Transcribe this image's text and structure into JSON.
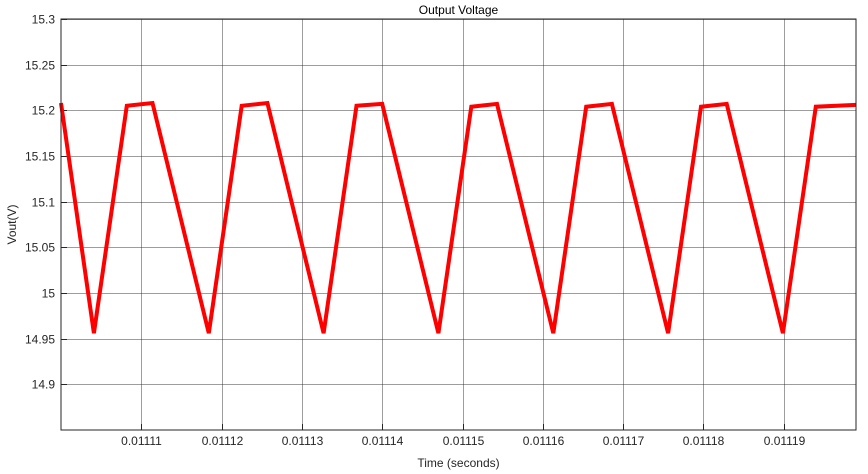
{
  "chart_data": {
    "type": "line",
    "title": "Output Voltage",
    "xlabel": "Time (seconds)",
    "ylabel": "Vout(V)",
    "xlim": [
      0.0111,
      0.011199
    ],
    "ylim": [
      14.85,
      15.3
    ],
    "grid": true,
    "colors": {
      "series": "#ff0000",
      "grid": "#262626",
      "axes": "#262626",
      "background": "#ffffff"
    },
    "x_ticks": [
      0.01111,
      0.01112,
      0.01113,
      0.01114,
      0.01115,
      0.01116,
      0.01117,
      0.01118,
      0.01119
    ],
    "x_tick_labels": [
      "0.01111",
      "0.01112",
      "0.01113",
      "0.01114",
      "0.01115",
      "0.01116",
      "0.01117",
      "0.01118",
      "0.01119"
    ],
    "y_ticks": [
      15.3,
      15.25,
      15.2,
      15.15,
      15.1,
      15.05,
      15.0,
      14.95,
      14.9
    ],
    "y_tick_labels": [
      "15.3",
      "15.25",
      "15.2",
      "15.15",
      "15.1",
      "15.05",
      "15",
      "14.95",
      "14.9"
    ],
    "series": [
      {
        "color": "#ff0000",
        "x": [
          0.0111,
          0.0111041,
          0.0111082,
          0.0111114,
          0.0111184,
          0.0111225,
          0.0111257,
          0.0111327,
          0.0111368,
          0.01114,
          0.011147,
          0.0111511,
          0.0111543,
          0.0111613,
          0.0111654,
          0.0111686,
          0.0111756,
          0.0111797,
          0.0111829,
          0.0111899,
          0.011194,
          0.011199
        ],
        "y": [
          15.208,
          14.956,
          15.205,
          15.208,
          14.956,
          15.205,
          15.208,
          14.956,
          15.205,
          15.207,
          14.956,
          15.204,
          15.207,
          14.956,
          15.204,
          15.207,
          14.956,
          15.204,
          15.207,
          14.956,
          15.204,
          15.206
        ]
      }
    ]
  }
}
